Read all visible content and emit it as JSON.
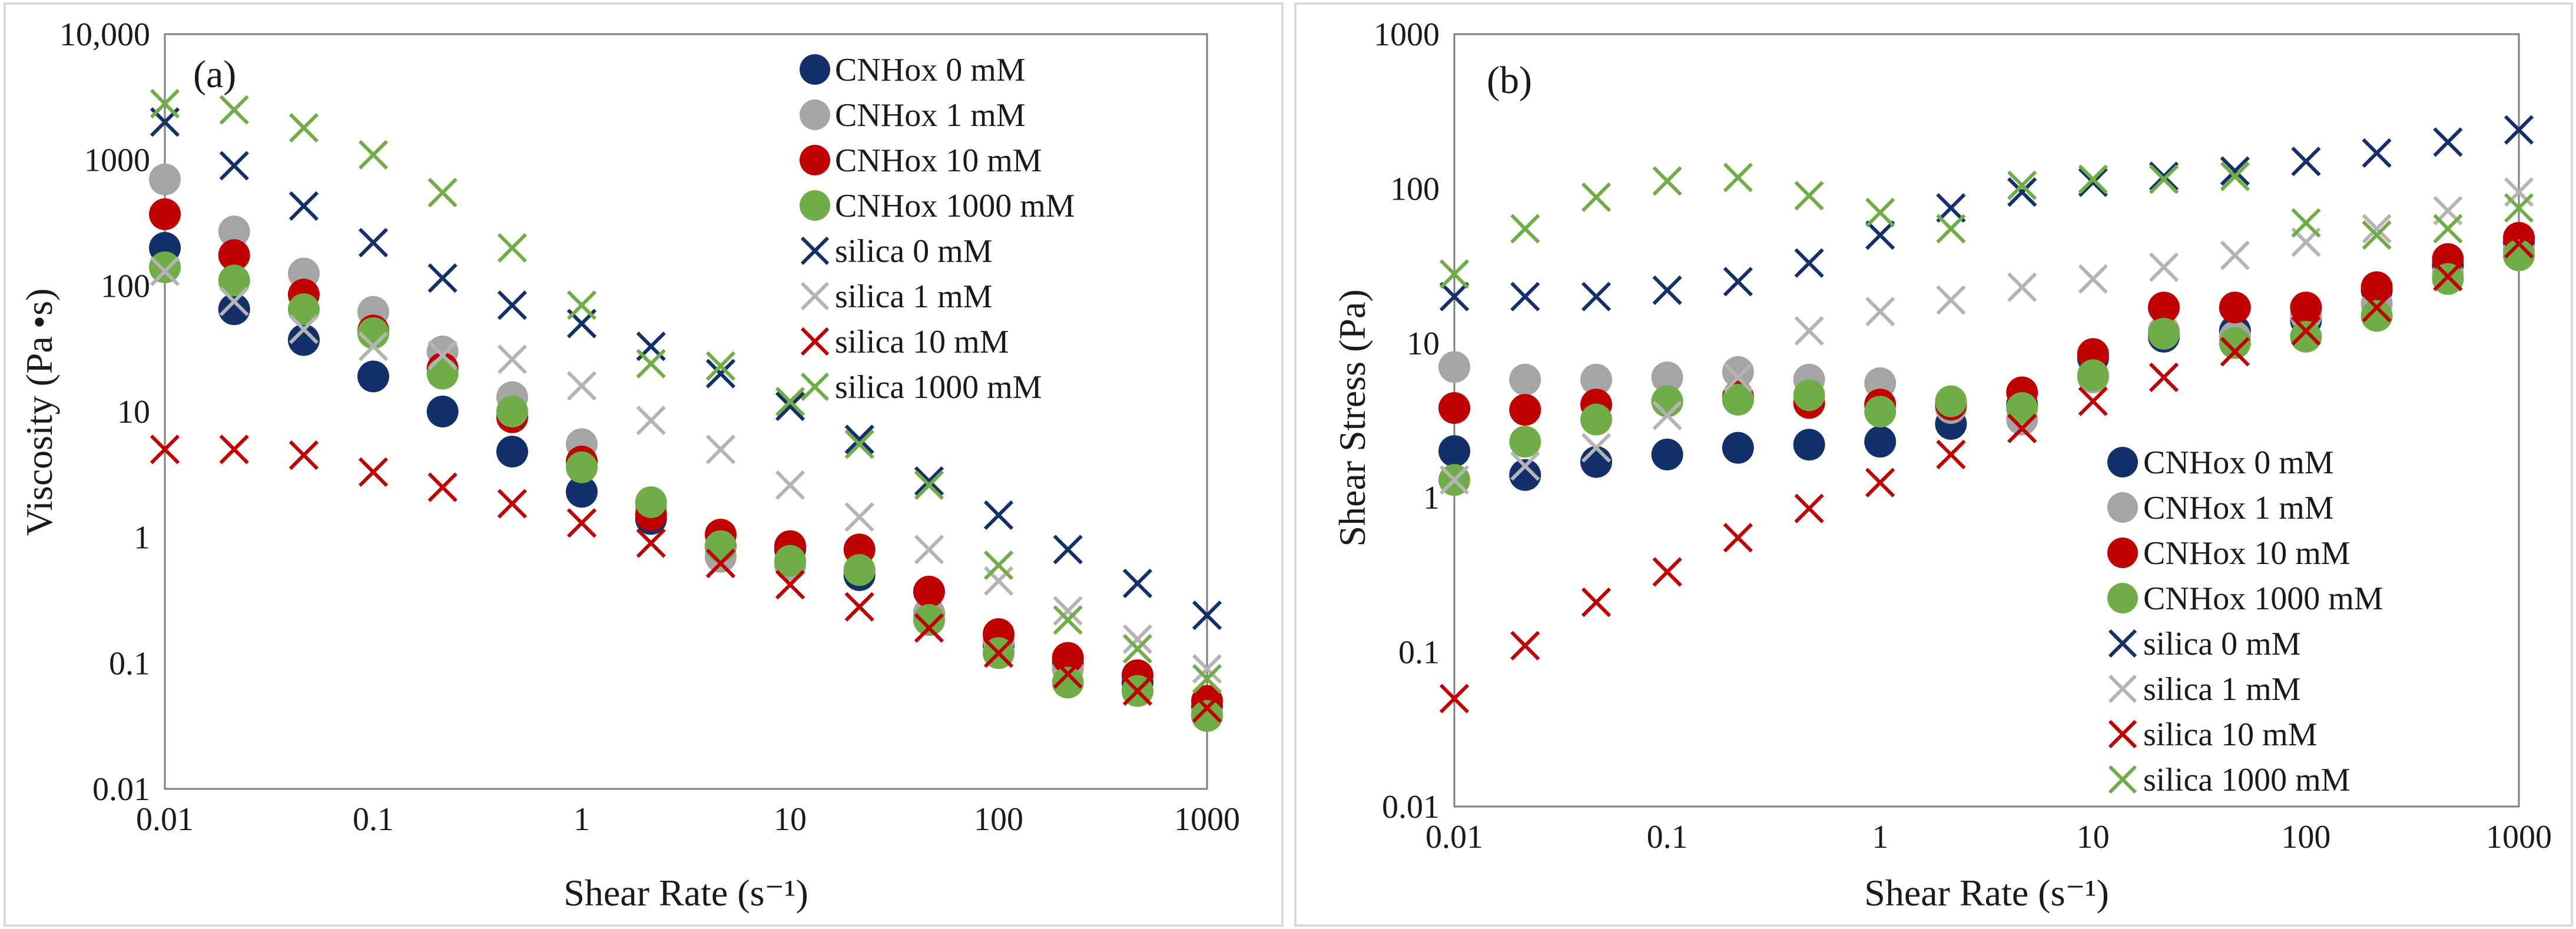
{
  "chart_data": [
    {
      "type": "scatter",
      "panel_label": "(a)",
      "xlabel": "Shear Rate (s⁻¹)",
      "ylabel": "Viscosity (Pa •s)",
      "xscale": "log",
      "yscale": "log",
      "xlim": [
        0.01,
        1000
      ],
      "ylim": [
        0.01,
        10000
      ],
      "x_ticks": [
        "0.01",
        "0.1",
        "1",
        "10",
        "100",
        "1000"
      ],
      "y_ticks": [
        "0.01",
        "0.1",
        "1",
        "10",
        "100",
        "1000",
        "10,000"
      ],
      "legend_position": "top-right",
      "x": [
        0.01,
        0.0215,
        0.0464,
        0.1,
        0.215,
        0.464,
        1,
        2.15,
        4.64,
        10,
        21.5,
        46.4,
        100,
        215,
        464,
        1000
      ],
      "series": [
        {
          "name": "CNHox 0 mM",
          "marker": "circle",
          "color": "#14306b",
          "values": [
            200,
            65,
            37,
            19,
            10,
            4.8,
            2.3,
            1.4,
            0.85,
            0.8,
            0.5,
            0.25,
            0.14,
            0.1,
            0.07,
            0.045
          ]
        },
        {
          "name": "CNHox 1 mM",
          "marker": "circle",
          "color": "#a5a5a5",
          "values": [
            700,
            270,
            125,
            62,
            30,
            13,
            5.5,
            1.7,
            0.7,
            0.6,
            0.55,
            0.25,
            0.15,
            0.09,
            0.06,
            0.04
          ]
        },
        {
          "name": "CNHox 10 mM",
          "marker": "circle",
          "color": "#c00000",
          "values": [
            370,
            175,
            85,
            44,
            22,
            9,
            4,
            1.5,
            1.05,
            0.85,
            0.8,
            0.37,
            0.17,
            0.11,
            0.08,
            0.05
          ]
        },
        {
          "name": "CNHox 1000 mM",
          "marker": "circle",
          "color": "#70ad47",
          "values": [
            140,
            110,
            65,
            42,
            20,
            10,
            3.6,
            1.9,
            0.85,
            0.65,
            0.55,
            0.22,
            0.12,
            0.07,
            0.06,
            0.038
          ]
        },
        {
          "name": "silica 0 mM",
          "marker": "x",
          "color": "#14306b",
          "values": [
            2000,
            900,
            430,
            220,
            115,
            70,
            50,
            33,
            20,
            11,
            6,
            2.8,
            1.5,
            0.8,
            0.43,
            0.24
          ]
        },
        {
          "name": "silica 1 mM",
          "marker": "x",
          "color": "#b4b4b4",
          "values": [
            130,
            75,
            45,
            33,
            28,
            26,
            16,
            8.5,
            5,
            2.6,
            1.45,
            0.8,
            0.45,
            0.26,
            0.155,
            0.09
          ]
        },
        {
          "name": "silica 10 mM",
          "marker": "x",
          "color": "#c00000",
          "values": [
            5,
            5,
            4.5,
            3.3,
            2.5,
            1.85,
            1.3,
            0.9,
            0.62,
            0.42,
            0.28,
            0.19,
            0.12,
            0.082,
            0.06,
            0.044
          ]
        },
        {
          "name": "silica 1000 mM",
          "marker": "x",
          "color": "#70ad47",
          "values": [
            2800,
            2500,
            1800,
            1100,
            550,
            200,
            70,
            24,
            23,
            12,
            5.5,
            2.6,
            0.6,
            0.22,
            0.13,
            0.075
          ]
        }
      ]
    },
    {
      "type": "scatter",
      "panel_label": "(b)",
      "xlabel": "Shear Rate (s⁻¹)",
      "ylabel": "Shear Stress (Pa)",
      "xscale": "log",
      "yscale": "log",
      "xlim": [
        0.01,
        1000
      ],
      "ylim": [
        0.01,
        1000
      ],
      "x_ticks": [
        "0.01",
        "0.1",
        "1",
        "10",
        "100",
        "1000"
      ],
      "y_ticks": [
        "0.01",
        "0.1",
        "1",
        "10",
        "100",
        "1000"
      ],
      "legend_position": "bottom-right",
      "x": [
        0.01,
        0.0215,
        0.0464,
        0.1,
        0.215,
        0.464,
        1,
        2.15,
        4.64,
        10,
        21.5,
        46.4,
        100,
        215,
        464,
        1000
      ],
      "series": [
        {
          "name": "CNHox 0 mM",
          "marker": "circle",
          "color": "#14306b",
          "values": [
            2,
            1.4,
            1.7,
            1.9,
            2.1,
            2.2,
            2.3,
            3,
            4,
            8,
            11,
            12,
            14,
            22,
            32,
            45
          ]
        },
        {
          "name": "CNHox 1 mM",
          "marker": "circle",
          "color": "#a5a5a5",
          "values": [
            7,
            5.8,
            5.8,
            6,
            6.5,
            5.8,
            5.5,
            3.8,
            3.2,
            6,
            12,
            11,
            15,
            18,
            28,
            40
          ]
        },
        {
          "name": "CNHox 10 mM",
          "marker": "circle",
          "color": "#c00000",
          "values": [
            3.8,
            3.7,
            4,
            4.2,
            4.5,
            4.1,
            4,
            4,
            4.8,
            8.5,
            17,
            17,
            17,
            23,
            35,
            48
          ]
        },
        {
          "name": "CNHox 1000 mM",
          "marker": "circle",
          "color": "#70ad47",
          "values": [
            1.3,
            2.3,
            3.2,
            4.2,
            4.3,
            4.6,
            3.6,
            4.2,
            3.8,
            6.2,
            11.5,
            10,
            11,
            15,
            26,
            37
          ]
        },
        {
          "name": "silica 0 mM",
          "marker": "x",
          "color": "#14306b",
          "values": [
            20,
            20,
            20,
            22,
            25,
            33,
            50,
            75,
            95,
            110,
            120,
            130,
            150,
            170,
            200,
            240
          ]
        },
        {
          "name": "silica 1 mM",
          "marker": "x",
          "color": "#b4b4b4",
          "values": [
            1.3,
            1.6,
            2.1,
            3.4,
            6,
            12,
            16,
            19,
            23,
            26,
            31,
            37,
            45,
            55,
            72,
            95
          ]
        },
        {
          "name": "silica 10 mM",
          "marker": "x",
          "color": "#c00000",
          "values": [
            0.05,
            0.11,
            0.21,
            0.33,
            0.55,
            0.85,
            1.25,
            1.9,
            2.8,
            4.2,
            6,
            8.8,
            12,
            17,
            27,
            44
          ]
        },
        {
          "name": "silica 1000 mM",
          "marker": "x",
          "color": "#70ad47",
          "values": [
            28,
            55,
            88,
            112,
            118,
            90,
            70,
            55,
            105,
            115,
            115,
            120,
            60,
            50,
            55,
            75
          ]
        }
      ]
    }
  ]
}
